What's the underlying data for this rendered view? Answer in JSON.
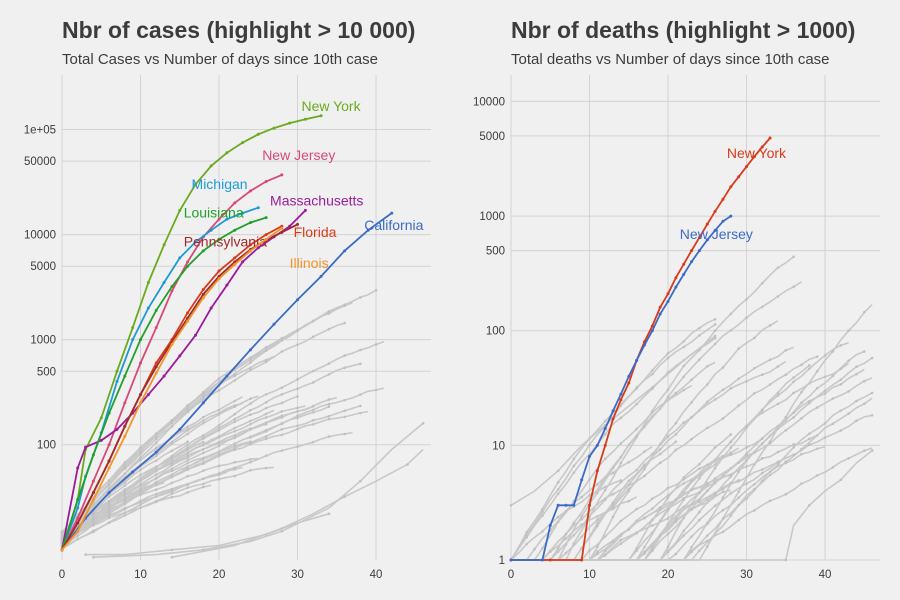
{
  "chart_data": [
    {
      "type": "line",
      "title": "Nbr of cases (highlight > 10 000)",
      "subtitle": "Total Cases vs Number of days since 10th case",
      "xlabel": "",
      "ylabel": "",
      "y_scale": "log",
      "xlim": [
        0,
        47
      ],
      "ylim": [
        8,
        330000
      ],
      "grid": true,
      "x_ticks": [
        0,
        10,
        20,
        30,
        40
      ],
      "x_tick_labels": [
        "0",
        "10",
        "20",
        "30",
        "40"
      ],
      "y_ticks": [
        100,
        500,
        1000,
        5000,
        10000,
        50000,
        100000
      ],
      "y_tick_labels": [
        "100",
        "500",
        "1000",
        "5000",
        "10000",
        "50000",
        "1e+05"
      ],
      "series": [
        {
          "name": "New York",
          "color": "#6aaa1e",
          "label_at": [
            30.5,
            150000
          ],
          "x": [
            0,
            2,
            3,
            5,
            7,
            9,
            11,
            13,
            15,
            17,
            19,
            21,
            23,
            25,
            27,
            29,
            31,
            33
          ],
          "y": [
            10,
            30,
            90,
            180,
            500,
            1300,
            3500,
            8000,
            17000,
            30000,
            45000,
            60000,
            75000,
            90000,
            103000,
            115000,
            125000,
            135000
          ]
        },
        {
          "name": "New Jersey",
          "color": "#d9487a",
          "label_at": [
            25.5,
            51000
          ],
          "x": [
            0,
            2,
            4,
            6,
            8,
            10,
            12,
            14,
            16,
            18,
            20,
            22,
            24,
            26,
            28
          ],
          "y": [
            10,
            20,
            45,
            100,
            250,
            600,
            1300,
            2900,
            5500,
            9500,
            14000,
            20000,
            26000,
            32000,
            37000
          ]
        },
        {
          "name": "Michigan",
          "color": "#1d9ad6",
          "label_at": [
            16.5,
            27000
          ],
          "x": [
            0,
            2,
            3,
            5,
            7,
            9,
            11,
            13,
            15,
            17,
            19,
            21,
            23,
            25
          ],
          "y": [
            10,
            25,
            50,
            130,
            400,
            1000,
            2000,
            3500,
            6000,
            8500,
            11000,
            14000,
            16000,
            18000
          ]
        },
        {
          "name": "Massachusetts",
          "color": "#9a1c9c",
          "label_at": [
            26.5,
            19000
          ],
          "x": [
            0,
            2,
            3,
            5,
            7,
            9,
            11,
            13,
            15,
            17,
            19,
            21,
            23,
            25,
            27,
            29,
            31
          ],
          "y": [
            10,
            60,
            95,
            110,
            140,
            200,
            300,
            450,
            700,
            1100,
            2000,
            3300,
            5500,
            7500,
            9500,
            12000,
            17000
          ]
        },
        {
          "name": "Louisiana",
          "color": "#1fa12c",
          "label_at": [
            15.5,
            14500
          ],
          "x": [
            0,
            2,
            4,
            6,
            8,
            10,
            12,
            14,
            16,
            18,
            20,
            22,
            24,
            26
          ],
          "y": [
            10,
            30,
            80,
            200,
            450,
            1000,
            1900,
            3200,
            5000,
            7000,
            9000,
            11000,
            13000,
            14500
          ]
        },
        {
          "name": "California",
          "color": "#3b6bc8",
          "label_at": [
            38.5,
            11000
          ],
          "x": [
            0,
            3,
            6,
            9,
            12,
            15,
            18,
            21,
            24,
            27,
            30,
            33,
            36,
            39,
            42
          ],
          "y": [
            10,
            20,
            35,
            55,
            85,
            140,
            250,
            450,
            800,
            1400,
            2400,
            4000,
            7000,
            11000,
            16000
          ]
        },
        {
          "name": "Florida",
          "color": "#d93a1b",
          "label_at": [
            29.5,
            9500
          ],
          "x": [
            0,
            2,
            4,
            6,
            8,
            10,
            12,
            14,
            16,
            18,
            20,
            22,
            24,
            26,
            28
          ],
          "y": [
            10,
            18,
            35,
            70,
            150,
            300,
            600,
            1000,
            1800,
            3000,
            4500,
            6000,
            8000,
            10000,
            12000
          ]
        },
        {
          "name": "Pennsylvania",
          "color": "#a12b2b",
          "label_at": [
            15.5,
            7700
          ],
          "x": [
            0,
            2,
            4,
            6,
            8,
            10,
            12,
            14,
            16,
            18,
            20,
            22,
            24,
            26,
            28,
            30
          ],
          "y": [
            10,
            18,
            35,
            70,
            150,
            300,
            550,
            950,
            1600,
            2700,
            4000,
            5500,
            7200,
            8900,
            10500,
            12500
          ]
        },
        {
          "name": "Illinois",
          "color": "#f0952a",
          "label_at": [
            29,
            4800
          ],
          "x": [
            0,
            2,
            4,
            6,
            8,
            10,
            12,
            14,
            16,
            18,
            20,
            22,
            24,
            26,
            28
          ],
          "y": [
            10,
            15,
            30,
            60,
            120,
            250,
            480,
            900,
            1500,
            2500,
            3800,
            5200,
            7000,
            9000,
            11500
          ]
        }
      ]
    },
    {
      "type": "line",
      "title": "Nbr of deaths (highlight > 1000)",
      "subtitle": "Total deaths vs Number of days since 10th case",
      "xlabel": "",
      "ylabel": "",
      "y_scale": "log",
      "xlim": [
        0,
        47
      ],
      "ylim": [
        1,
        17000
      ],
      "grid": true,
      "x_ticks": [
        0,
        10,
        20,
        30,
        40
      ],
      "x_tick_labels": [
        "0",
        "10",
        "20",
        "30",
        "40"
      ],
      "y_ticks": [
        1,
        10,
        100,
        500,
        1000,
        5000,
        10000
      ],
      "y_tick_labels": [
        "1",
        "10",
        "100",
        "500",
        "1000",
        "5000",
        "10000"
      ],
      "series": [
        {
          "name": "New York",
          "color": "#d93a1b",
          "label_at": [
            27.5,
            3200
          ],
          "x": [
            0,
            5,
            9,
            10,
            11,
            12,
            13,
            14,
            15,
            16,
            17,
            18,
            19,
            20,
            21,
            22,
            23,
            24,
            25,
            26,
            27,
            28,
            29,
            30,
            31,
            32,
            33
          ],
          "y": [
            1,
            1,
            1,
            3,
            6,
            10,
            17,
            25,
            35,
            55,
            80,
            110,
            160,
            210,
            290,
            380,
            500,
            650,
            850,
            1100,
            1400,
            1800,
            2200,
            2700,
            3300,
            4000,
            4800
          ]
        },
        {
          "name": "New Jersey",
          "color": "#3b6bc8",
          "label_at": [
            21.5,
            630
          ],
          "x": [
            0,
            4,
            5,
            6,
            7,
            8,
            9,
            10,
            11,
            12,
            13,
            14,
            15,
            16,
            17,
            18,
            19,
            20,
            21,
            22,
            23,
            24,
            25,
            26,
            27,
            28
          ],
          "y": [
            1,
            1,
            2,
            3,
            3,
            3,
            5,
            8,
            10,
            14,
            20,
            28,
            40,
            55,
            75,
            100,
            140,
            180,
            240,
            310,
            400,
            500,
            620,
            750,
            900,
            1000
          ]
        }
      ]
    }
  ]
}
